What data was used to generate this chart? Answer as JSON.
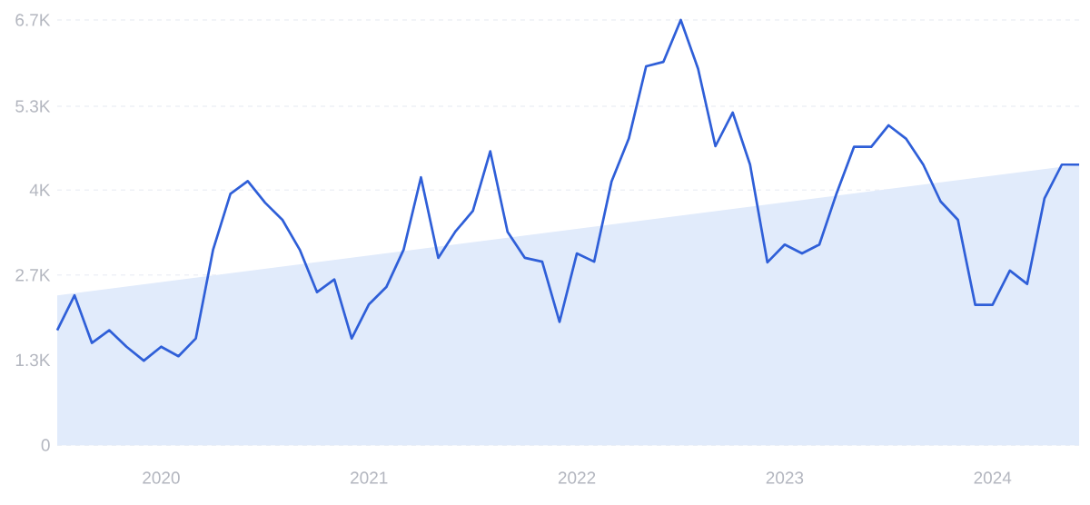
{
  "chart_data": {
    "type": "line",
    "x": [
      "2019-07",
      "2019-08",
      "2019-09",
      "2019-10",
      "2019-11",
      "2019-12",
      "2020-01",
      "2020-02",
      "2020-03",
      "2020-04",
      "2020-05",
      "2020-06",
      "2020-07",
      "2020-08",
      "2020-09",
      "2020-10",
      "2020-11",
      "2020-12",
      "2021-01",
      "2021-02",
      "2021-03",
      "2021-04",
      "2021-05",
      "2021-06",
      "2021-07",
      "2021-08",
      "2021-09",
      "2021-10",
      "2021-11",
      "2021-12",
      "2022-01",
      "2022-02",
      "2022-03",
      "2022-04",
      "2022-05",
      "2022-06",
      "2022-07",
      "2022-08",
      "2022-09",
      "2022-10",
      "2022-11",
      "2022-12",
      "2023-01",
      "2023-02",
      "2023-03",
      "2023-04",
      "2023-05",
      "2023-06",
      "2023-07",
      "2023-08",
      "2023-09",
      "2023-10",
      "2023-11",
      "2023-12",
      "2024-01",
      "2024-02",
      "2024-03",
      "2024-04",
      "2024-05",
      "2024-06"
    ],
    "series": [
      {
        "type": "area",
        "color": "#e1ebfb",
        "x": [
          "2019-07",
          "2024-06"
        ],
        "values": [
          2360,
          4420
        ]
      },
      {
        "color": "#2f5fd8",
        "values": [
          1810,
          2360,
          1610,
          1810,
          1550,
          1330,
          1550,
          1400,
          1680,
          3080,
          3960,
          4160,
          3820,
          3550,
          3080,
          2410,
          2610,
          1680,
          2220,
          2490,
          3080,
          4220,
          2950,
          3370,
          3690,
          4630,
          3360,
          2950,
          2890,
          1940,
          3020,
          2890,
          4150,
          4830,
          5970,
          6040,
          6700,
          5930,
          4710,
          5240,
          4420,
          2880,
          3160,
          3020,
          3160,
          3970,
          4700,
          4700,
          5040,
          4830,
          4420,
          3840,
          3550,
          2210,
          2210,
          2750,
          2540,
          3890,
          4420,
          4420
        ]
      }
    ],
    "xlim": [
      "2019-07",
      "2024-06"
    ],
    "xticks": [
      "2020",
      "2021",
      "2022",
      "2023",
      "2024"
    ],
    "ylim": [
      0,
      6700
    ],
    "yticks": [
      0,
      {
        "value": 1340,
        "label": "1.3K"
      },
      {
        "value": 2680,
        "label": "2.7K"
      },
      {
        "value": 4020,
        "label": "4K"
      },
      {
        "value": 5340,
        "label": "5.3K"
      },
      {
        "value": 6700,
        "label": "6.7K"
      }
    ],
    "grid": "y"
  }
}
